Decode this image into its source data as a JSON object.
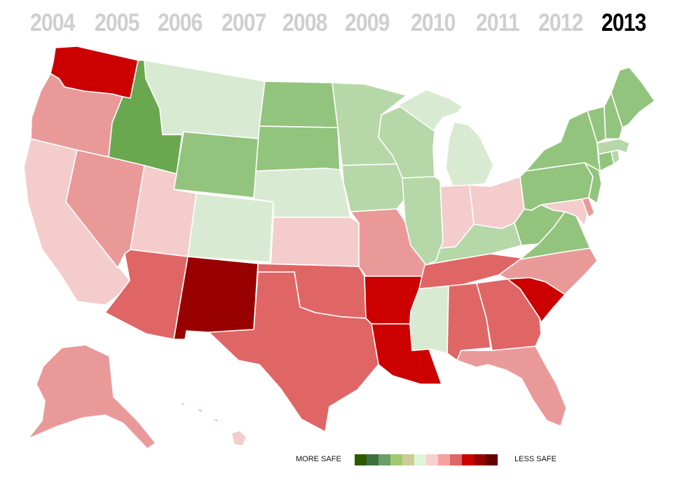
{
  "years": [
    "2004",
    "2005",
    "2006",
    "2007",
    "2008",
    "2009",
    "2010",
    "2011",
    "2012",
    "2013"
  ],
  "active_year": "2013",
  "legend": {
    "left_label": "MORE SAFE",
    "right_label": "LESS SAFE",
    "scale": [
      "#2d5a00",
      "#3f6f3f",
      "#6a9f6a",
      "#9ecb6e",
      "#cccc99",
      "#ddf5d5",
      "#f9d0d0",
      "#f7a0a0",
      "#dd6666",
      "#cc0000",
      "#990000",
      "#660000"
    ]
  },
  "palette": {
    "g1": "#6aa84f",
    "g2": "#93c47d",
    "g3": "#b6d7a8",
    "g4": "#d9ead3",
    "r1": "#f4cccc",
    "r2": "#ea9999",
    "r3": "#e06666",
    "r4": "#cc0000",
    "r5": "#990000"
  },
  "states": [
    {
      "name": "Washington",
      "color": "r4"
    },
    {
      "name": "Oregon",
      "color": "r2"
    },
    {
      "name": "California",
      "color": "r1"
    },
    {
      "name": "Idaho",
      "color": "g1"
    },
    {
      "name": "Nevada",
      "color": "r2"
    },
    {
      "name": "Montana",
      "color": "g4"
    },
    {
      "name": "Wyoming",
      "color": "g2"
    },
    {
      "name": "Utah",
      "color": "r1"
    },
    {
      "name": "Colorado",
      "color": "g4"
    },
    {
      "name": "Arizona",
      "color": "r3"
    },
    {
      "name": "New Mexico",
      "color": "r5"
    },
    {
      "name": "North Dakota",
      "color": "g2"
    },
    {
      "name": "South Dakota",
      "color": "g2"
    },
    {
      "name": "Nebraska",
      "color": "g4"
    },
    {
      "name": "Kansas",
      "color": "r1"
    },
    {
      "name": "Oklahoma",
      "color": "r3"
    },
    {
      "name": "Texas",
      "color": "r3"
    },
    {
      "name": "Minnesota",
      "color": "g3"
    },
    {
      "name": "Iowa",
      "color": "g3"
    },
    {
      "name": "Missouri",
      "color": "r2"
    },
    {
      "name": "Arkansas",
      "color": "r4"
    },
    {
      "name": "Louisiana",
      "color": "r4"
    },
    {
      "name": "Wisconsin",
      "color": "g3"
    },
    {
      "name": "Illinois",
      "color": "g3"
    },
    {
      "name": "Michigan",
      "color": "g4"
    },
    {
      "name": "Indiana",
      "color": "r1"
    },
    {
      "name": "Ohio",
      "color": "r1"
    },
    {
      "name": "Kentucky",
      "color": "g3"
    },
    {
      "name": "Tennessee",
      "color": "r3"
    },
    {
      "name": "Mississippi",
      "color": "g4"
    },
    {
      "name": "Alabama",
      "color": "r3"
    },
    {
      "name": "Georgia",
      "color": "r3"
    },
    {
      "name": "Florida",
      "color": "r2"
    },
    {
      "name": "South Carolina",
      "color": "r4"
    },
    {
      "name": "North Carolina",
      "color": "r2"
    },
    {
      "name": "Virginia",
      "color": "g2"
    },
    {
      "name": "West Virginia",
      "color": "g2"
    },
    {
      "name": "Maryland",
      "color": "r1"
    },
    {
      "name": "Delaware",
      "color": "r2"
    },
    {
      "name": "Pennsylvania",
      "color": "g2"
    },
    {
      "name": "New Jersey",
      "color": "g2"
    },
    {
      "name": "New York",
      "color": "g2"
    },
    {
      "name": "Connecticut",
      "color": "g2"
    },
    {
      "name": "Rhode Island",
      "color": "g3"
    },
    {
      "name": "Massachusetts",
      "color": "g3"
    },
    {
      "name": "Vermont",
      "color": "g2"
    },
    {
      "name": "New Hampshire",
      "color": "g2"
    },
    {
      "name": "Maine",
      "color": "g2"
    },
    {
      "name": "Alaska",
      "color": "r2"
    },
    {
      "name": "Hawaii",
      "color": "r1"
    }
  ]
}
